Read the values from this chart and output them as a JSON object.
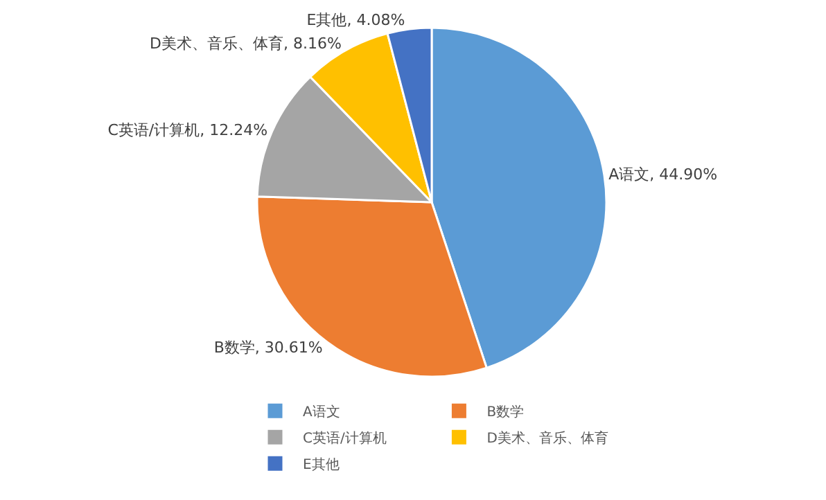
{
  "chart_data": {
    "type": "pie",
    "categories": [
      "A语文",
      "B数学",
      "C英语/计算机",
      "D美术、音乐、体育",
      "E其他"
    ],
    "values": [
      44.9,
      30.61,
      12.24,
      8.16,
      4.08
    ],
    "value_labels": [
      "A语文, 44.90%",
      "B数学, 30.61%",
      "C英语/计算机, 12.24%",
      "D美术、音乐、体育, 8.16%",
      "E其他, 4.08%"
    ],
    "colors": [
      "#5b9bd5",
      "#ed7d31",
      "#a5a5a5",
      "#ffc000",
      "#4472c4"
    ],
    "legend": "bottom"
  }
}
